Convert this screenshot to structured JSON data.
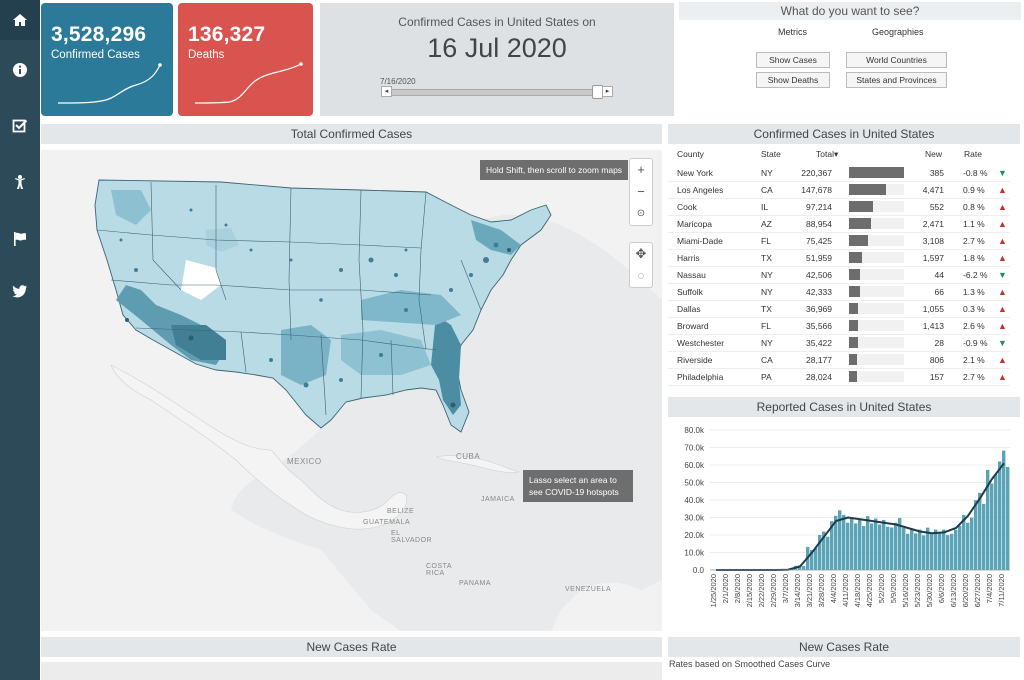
{
  "sidebar": {
    "items": [
      {
        "icon": "home-icon"
      },
      {
        "icon": "info-icon"
      },
      {
        "icon": "checkbox-icon"
      },
      {
        "icon": "person-icon"
      },
      {
        "icon": "flag-icon"
      },
      {
        "icon": "twitter-icon"
      }
    ]
  },
  "cards": {
    "cases": {
      "value": "3,528,296",
      "label": "Confirmed Cases",
      "color": "#2b7a99"
    },
    "deaths": {
      "value": "136,327",
      "label": "Deaths",
      "color": "#d9534f"
    }
  },
  "date_panel": {
    "title": "Confirmed Cases in United States on",
    "date": "16 Jul 2020",
    "slider_label": "7/16/2020",
    "slider_position": 0.95
  },
  "selector": {
    "title": "What do you want to see?",
    "metrics_label": "Metrics",
    "geographies_label": "Geographies",
    "show_cases": "Show Cases",
    "show_deaths": "Show Deaths",
    "world_countries": "World Countries",
    "states_provinces": "States and Provinces"
  },
  "map_panel": {
    "title": "Total Confirmed Cases",
    "zoom_tooltip": "Hold Shift, then scroll to zoom maps",
    "lasso_tooltip": "Lasso select an area to see COVID-19 hotspots",
    "labels": {
      "mexico": "MEXICO",
      "cuba": "CUBA",
      "jamaica": "JAMAICA",
      "belize": "BELIZE",
      "guatemala": "GUATEMALA",
      "el_salvador": "EL SALVADOR",
      "costa_rica": "COSTA RICA",
      "panama": "PANAMA",
      "venezuela": "VENEZUELA"
    }
  },
  "table": {
    "title": "Confirmed Cases in United States",
    "headers": {
      "county": "County",
      "state": "State",
      "total": "Total",
      "new": "New",
      "rate": "Rate"
    },
    "rows": [
      {
        "county": "New York",
        "state": "NY",
        "total": "220,367",
        "total_value": 220367,
        "new": "385",
        "rate": "-0.8 %",
        "trend": "down"
      },
      {
        "county": "Los Angeles",
        "state": "CA",
        "total": "147,678",
        "total_value": 147678,
        "new": "4,471",
        "rate": "0.9 %",
        "trend": "up"
      },
      {
        "county": "Cook",
        "state": "IL",
        "total": "97,214",
        "total_value": 97214,
        "new": "552",
        "rate": "0.8 %",
        "trend": "up"
      },
      {
        "county": "Maricopa",
        "state": "AZ",
        "total": "88,954",
        "total_value": 88954,
        "new": "2,471",
        "rate": "1.1 %",
        "trend": "up"
      },
      {
        "county": "Miami-Dade",
        "state": "FL",
        "total": "75,425",
        "total_value": 75425,
        "new": "3,108",
        "rate": "2.7 %",
        "trend": "up"
      },
      {
        "county": "Harris",
        "state": "TX",
        "total": "51,959",
        "total_value": 51959,
        "new": "1,597",
        "rate": "1.8 %",
        "trend": "up"
      },
      {
        "county": "Nassau",
        "state": "NY",
        "total": "42,506",
        "total_value": 42506,
        "new": "44",
        "rate": "-6.2 %",
        "trend": "down"
      },
      {
        "county": "Suffolk",
        "state": "NY",
        "total": "42,333",
        "total_value": 42333,
        "new": "66",
        "rate": "1.3 %",
        "trend": "up"
      },
      {
        "county": "Dallas",
        "state": "TX",
        "total": "36,969",
        "total_value": 36969,
        "new": "1,055",
        "rate": "0.3 %",
        "trend": "up"
      },
      {
        "county": "Broward",
        "state": "FL",
        "total": "35,566",
        "total_value": 35566,
        "new": "1,413",
        "rate": "2.6 %",
        "trend": "up"
      },
      {
        "county": "Westchester",
        "state": "NY",
        "total": "35,422",
        "total_value": 35422,
        "new": "28",
        "rate": "-0.9 %",
        "trend": "down"
      },
      {
        "county": "Riverside",
        "state": "CA",
        "total": "28,177",
        "total_value": 28177,
        "new": "806",
        "rate": "2.1 %",
        "trend": "up"
      },
      {
        "county": "Philadelphia",
        "state": "PA",
        "total": "28,024",
        "total_value": 28024,
        "new": "157",
        "rate": "2.7 %",
        "trend": "up"
      }
    ]
  },
  "chart_panel": {
    "title": "Reported Cases in United States"
  },
  "chart_data": {
    "type": "bar",
    "ylim": [
      0,
      80000
    ],
    "yticks": [
      0,
      10000,
      20000,
      30000,
      40000,
      50000,
      60000,
      70000,
      80000
    ],
    "ytick_labels": [
      "0.0",
      "10.0k",
      "20.0k",
      "30.0k",
      "40.0k",
      "50.0k",
      "60.0k",
      "70.0k",
      "80.0k"
    ],
    "xtick_labels": [
      "1/25/2020",
      "2/1/2020",
      "2/8/2020",
      "2/15/2020",
      "2/22/2020",
      "2/29/2020",
      "3/7/2020",
      "3/14/2020",
      "3/21/2020",
      "3/28/2020",
      "4/4/2020",
      "4/11/2020",
      "4/18/2020",
      "4/25/2020",
      "5/2/2020",
      "5/9/2020",
      "5/16/2020",
      "5/23/2020",
      "5/30/2020",
      "6/6/2020",
      "6/13/2020",
      "6/20/2020",
      "6/27/2020",
      "7/4/2020",
      "7/11/2020"
    ],
    "weekly_bars": [
      0,
      0,
      0,
      0,
      0,
      0,
      300,
      2500,
      12000,
      20000,
      31000,
      30000,
      28000,
      28000,
      26000,
      27000,
      23000,
      22000,
      22000,
      21000,
      23000,
      30000,
      42000,
      52000,
      62000
    ],
    "smoothed_curve": [
      0,
      0,
      0,
      0,
      0,
      0,
      200,
      2000,
      10000,
      19000,
      28000,
      30000,
      29000,
      28000,
      27000,
      26000,
      24000,
      22000,
      21000,
      21500,
      24000,
      31000,
      41000,
      52000,
      61000
    ],
    "bar_color": "#5ba4b8",
    "line_color": "#1f3a4a"
  },
  "bottom": {
    "left_title": "New Cases Rate",
    "right_title": "New Cases Rate",
    "note": "Rates based on Smoothed Cases Curve"
  }
}
